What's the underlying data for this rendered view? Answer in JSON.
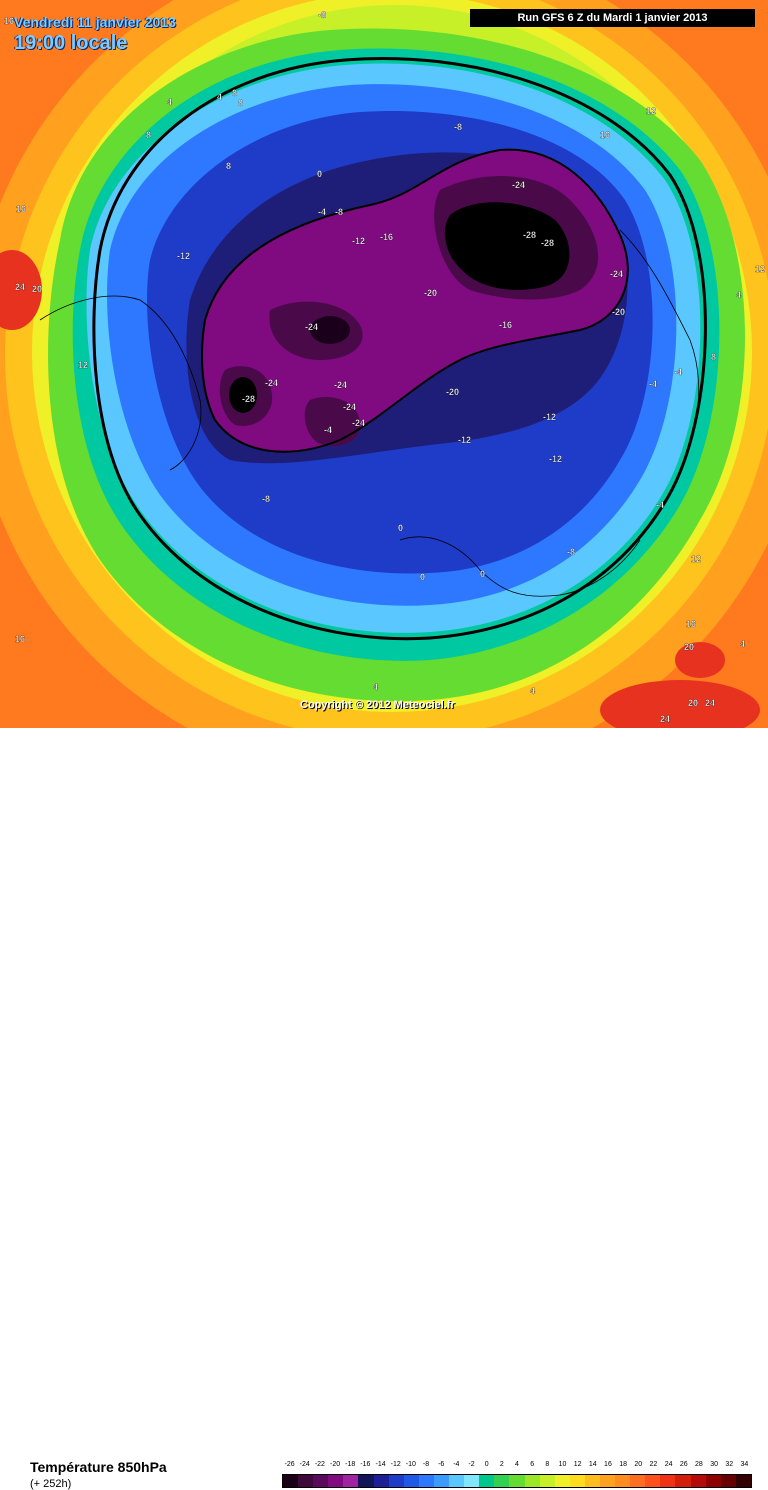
{
  "header": {
    "valid_date": "Vendredi 11 janvier 2013",
    "local_time": "19:00 locale",
    "run_info": "Run GFS 6 Z du Mardi 1 janvier 2013"
  },
  "footer": {
    "variable": "Température 850hPa",
    "forecast_hour": "(+ 252h)",
    "copyright": "Copyright © 2012 Meteociel.fr"
  },
  "legend": {
    "values": [
      "-26",
      "-24",
      "-22",
      "-20",
      "-18",
      "-16",
      "-14",
      "-12",
      "-10",
      "-8",
      "-6",
      "-4",
      "-2",
      "0",
      "2",
      "4",
      "6",
      "8",
      "10",
      "12",
      "14",
      "16",
      "18",
      "20",
      "22",
      "24",
      "26",
      "28",
      "30",
      "32",
      "34"
    ],
    "colors": [
      "#1a0016",
      "#3d0a3a",
      "#5a0a5a",
      "#800a80",
      "#a024a0",
      "#14145a",
      "#1e1e96",
      "#1e3cc8",
      "#1e5ae6",
      "#2d78ff",
      "#3c9bff",
      "#5ac8ff",
      "#82e6ff",
      "#00c88c",
      "#32d250",
      "#64dc32",
      "#9be628",
      "#c8f028",
      "#f0f028",
      "#ffdc1e",
      "#ffbe1e",
      "#ffa01e",
      "#ff8c1e",
      "#ff6e1e",
      "#ff501e",
      "#f03214",
      "#d21e0a",
      "#b40a0a",
      "#8c0000",
      "#640000",
      "#320000"
    ]
  },
  "map": {
    "isotherm_labels": [
      {
        "text": "16"
      },
      {
        "text": "-8"
      },
      {
        "text": "16"
      },
      {
        "text": "12"
      },
      {
        "text": "4"
      },
      {
        "text": "4"
      },
      {
        "text": "8"
      },
      {
        "text": "8"
      },
      {
        "text": "8"
      },
      {
        "text": "8"
      },
      {
        "text": "16"
      },
      {
        "text": "-4"
      },
      {
        "text": "-8"
      },
      {
        "text": "-12"
      },
      {
        "text": "-16"
      },
      {
        "text": "-24"
      },
      {
        "text": "-28"
      },
      {
        "text": "-28"
      },
      {
        "text": "-24"
      },
      {
        "text": "-20"
      },
      {
        "text": "-20"
      },
      {
        "text": "-16"
      },
      {
        "text": "-24"
      },
      {
        "text": "-24"
      },
      {
        "text": "-28"
      },
      {
        "text": "-24"
      },
      {
        "text": "-24"
      },
      {
        "text": "-24"
      },
      {
        "text": "-20"
      },
      {
        "text": "-12"
      },
      {
        "text": "-12"
      },
      {
        "text": "-12"
      },
      {
        "text": "-12"
      },
      {
        "text": "-8"
      },
      {
        "text": "-8"
      },
      {
        "text": "-4"
      },
      {
        "text": "-4"
      },
      {
        "text": "-4"
      },
      {
        "text": "-4"
      },
      {
        "text": "-8"
      },
      {
        "text": "12"
      },
      {
        "text": "12"
      },
      {
        "text": "4"
      },
      {
        "text": "8"
      },
      {
        "text": "24"
      },
      {
        "text": "20"
      },
      {
        "text": "12"
      },
      {
        "text": "0"
      },
      {
        "text": "0"
      },
      {
        "text": "0"
      },
      {
        "text": "4"
      },
      {
        "text": "16"
      },
      {
        "text": "20"
      },
      {
        "text": "24"
      },
      {
        "text": "20"
      },
      {
        "text": "24"
      },
      {
        "text": "16"
      },
      {
        "text": "4"
      },
      {
        "text": "4"
      },
      {
        "text": "0"
      }
    ]
  }
}
